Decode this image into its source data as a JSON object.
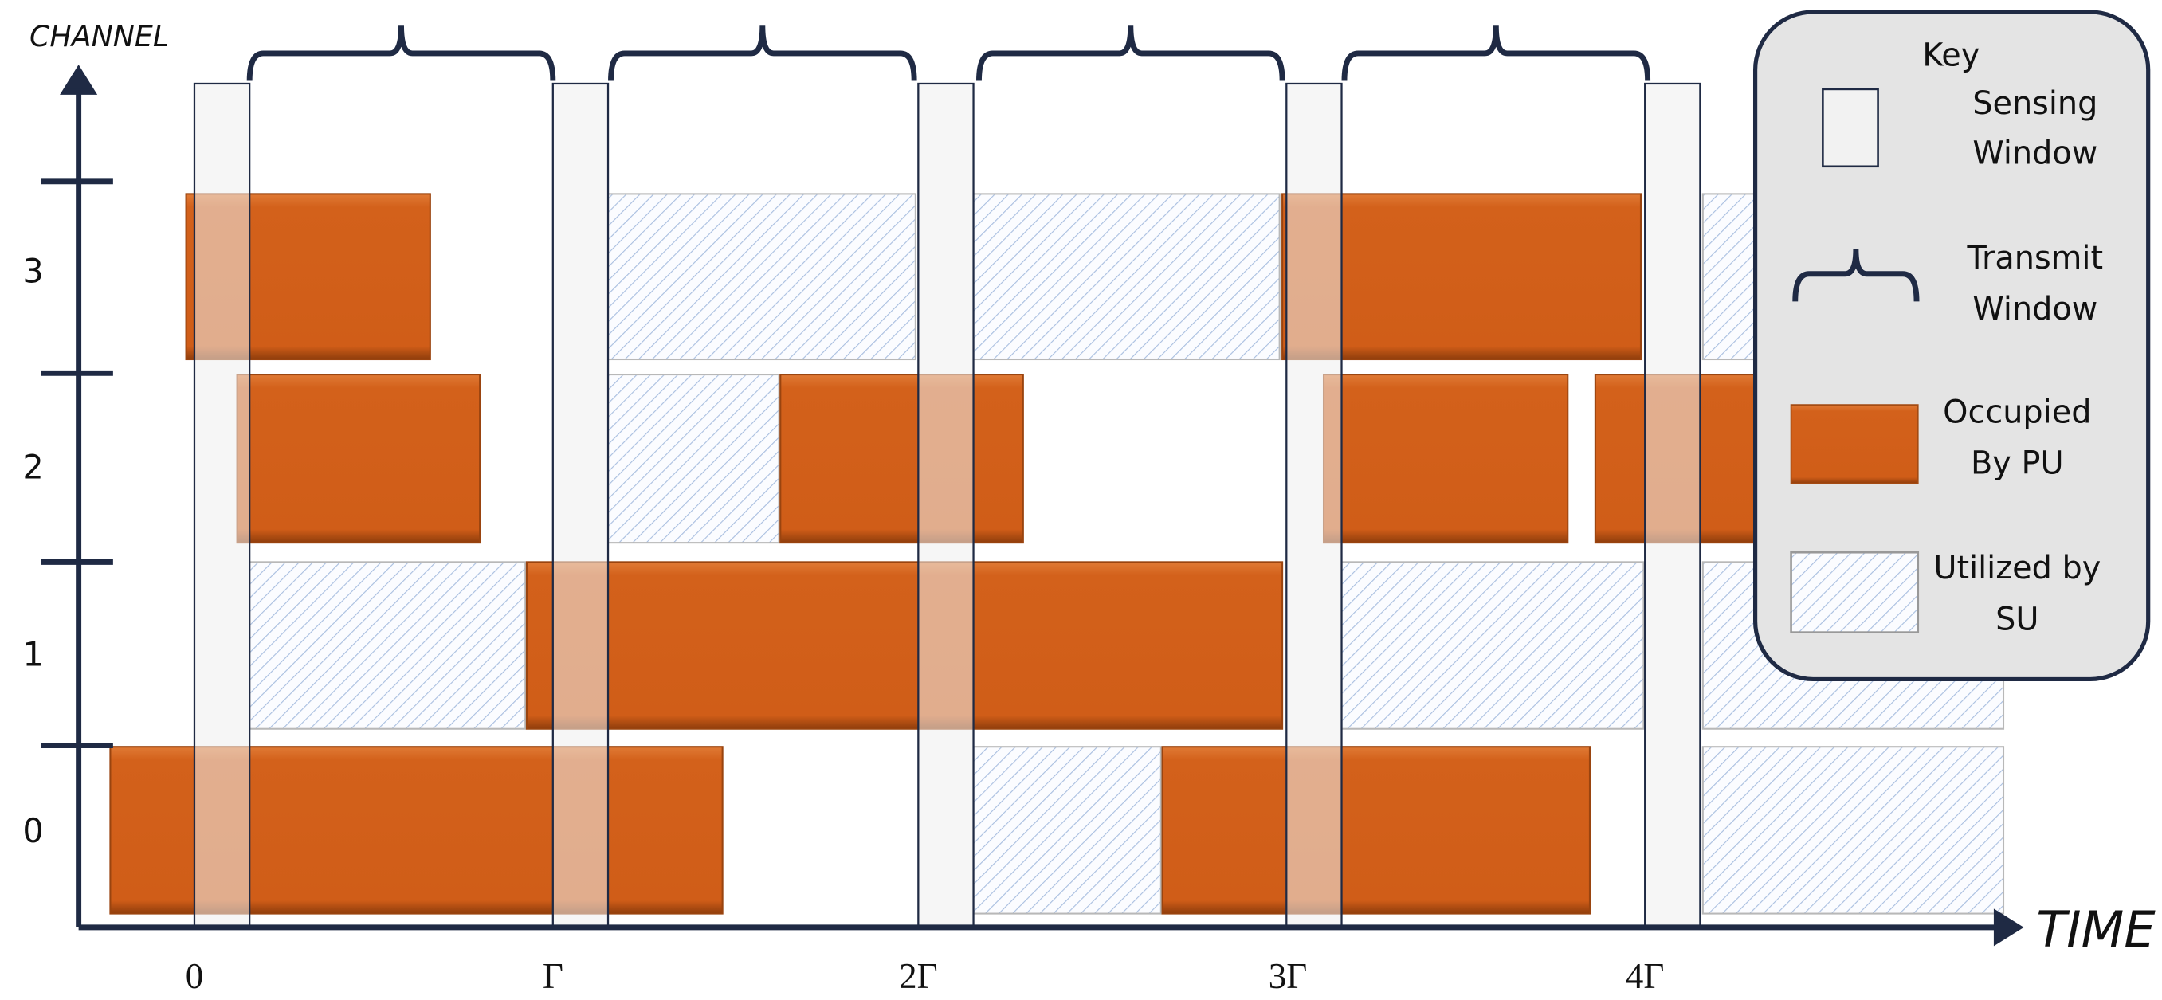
{
  "axes": {
    "y_label": "CHANNEL",
    "x_label": "TIME"
  },
  "channels": [
    "0",
    "1",
    "2",
    "3"
  ],
  "time_labels": [
    "0",
    "Γ",
    "2Γ",
    "3Γ",
    "4Γ"
  ],
  "key": {
    "title": "Key",
    "items": [
      {
        "lines": [
          "Sensing",
          "Window"
        ]
      },
      {
        "lines": [
          "Transmit",
          "Window"
        ]
      },
      {
        "lines": [
          "Occupied",
          "By PU"
        ]
      },
      {
        "lines": [
          "Utilized by",
          "SU"
        ]
      }
    ]
  }
}
